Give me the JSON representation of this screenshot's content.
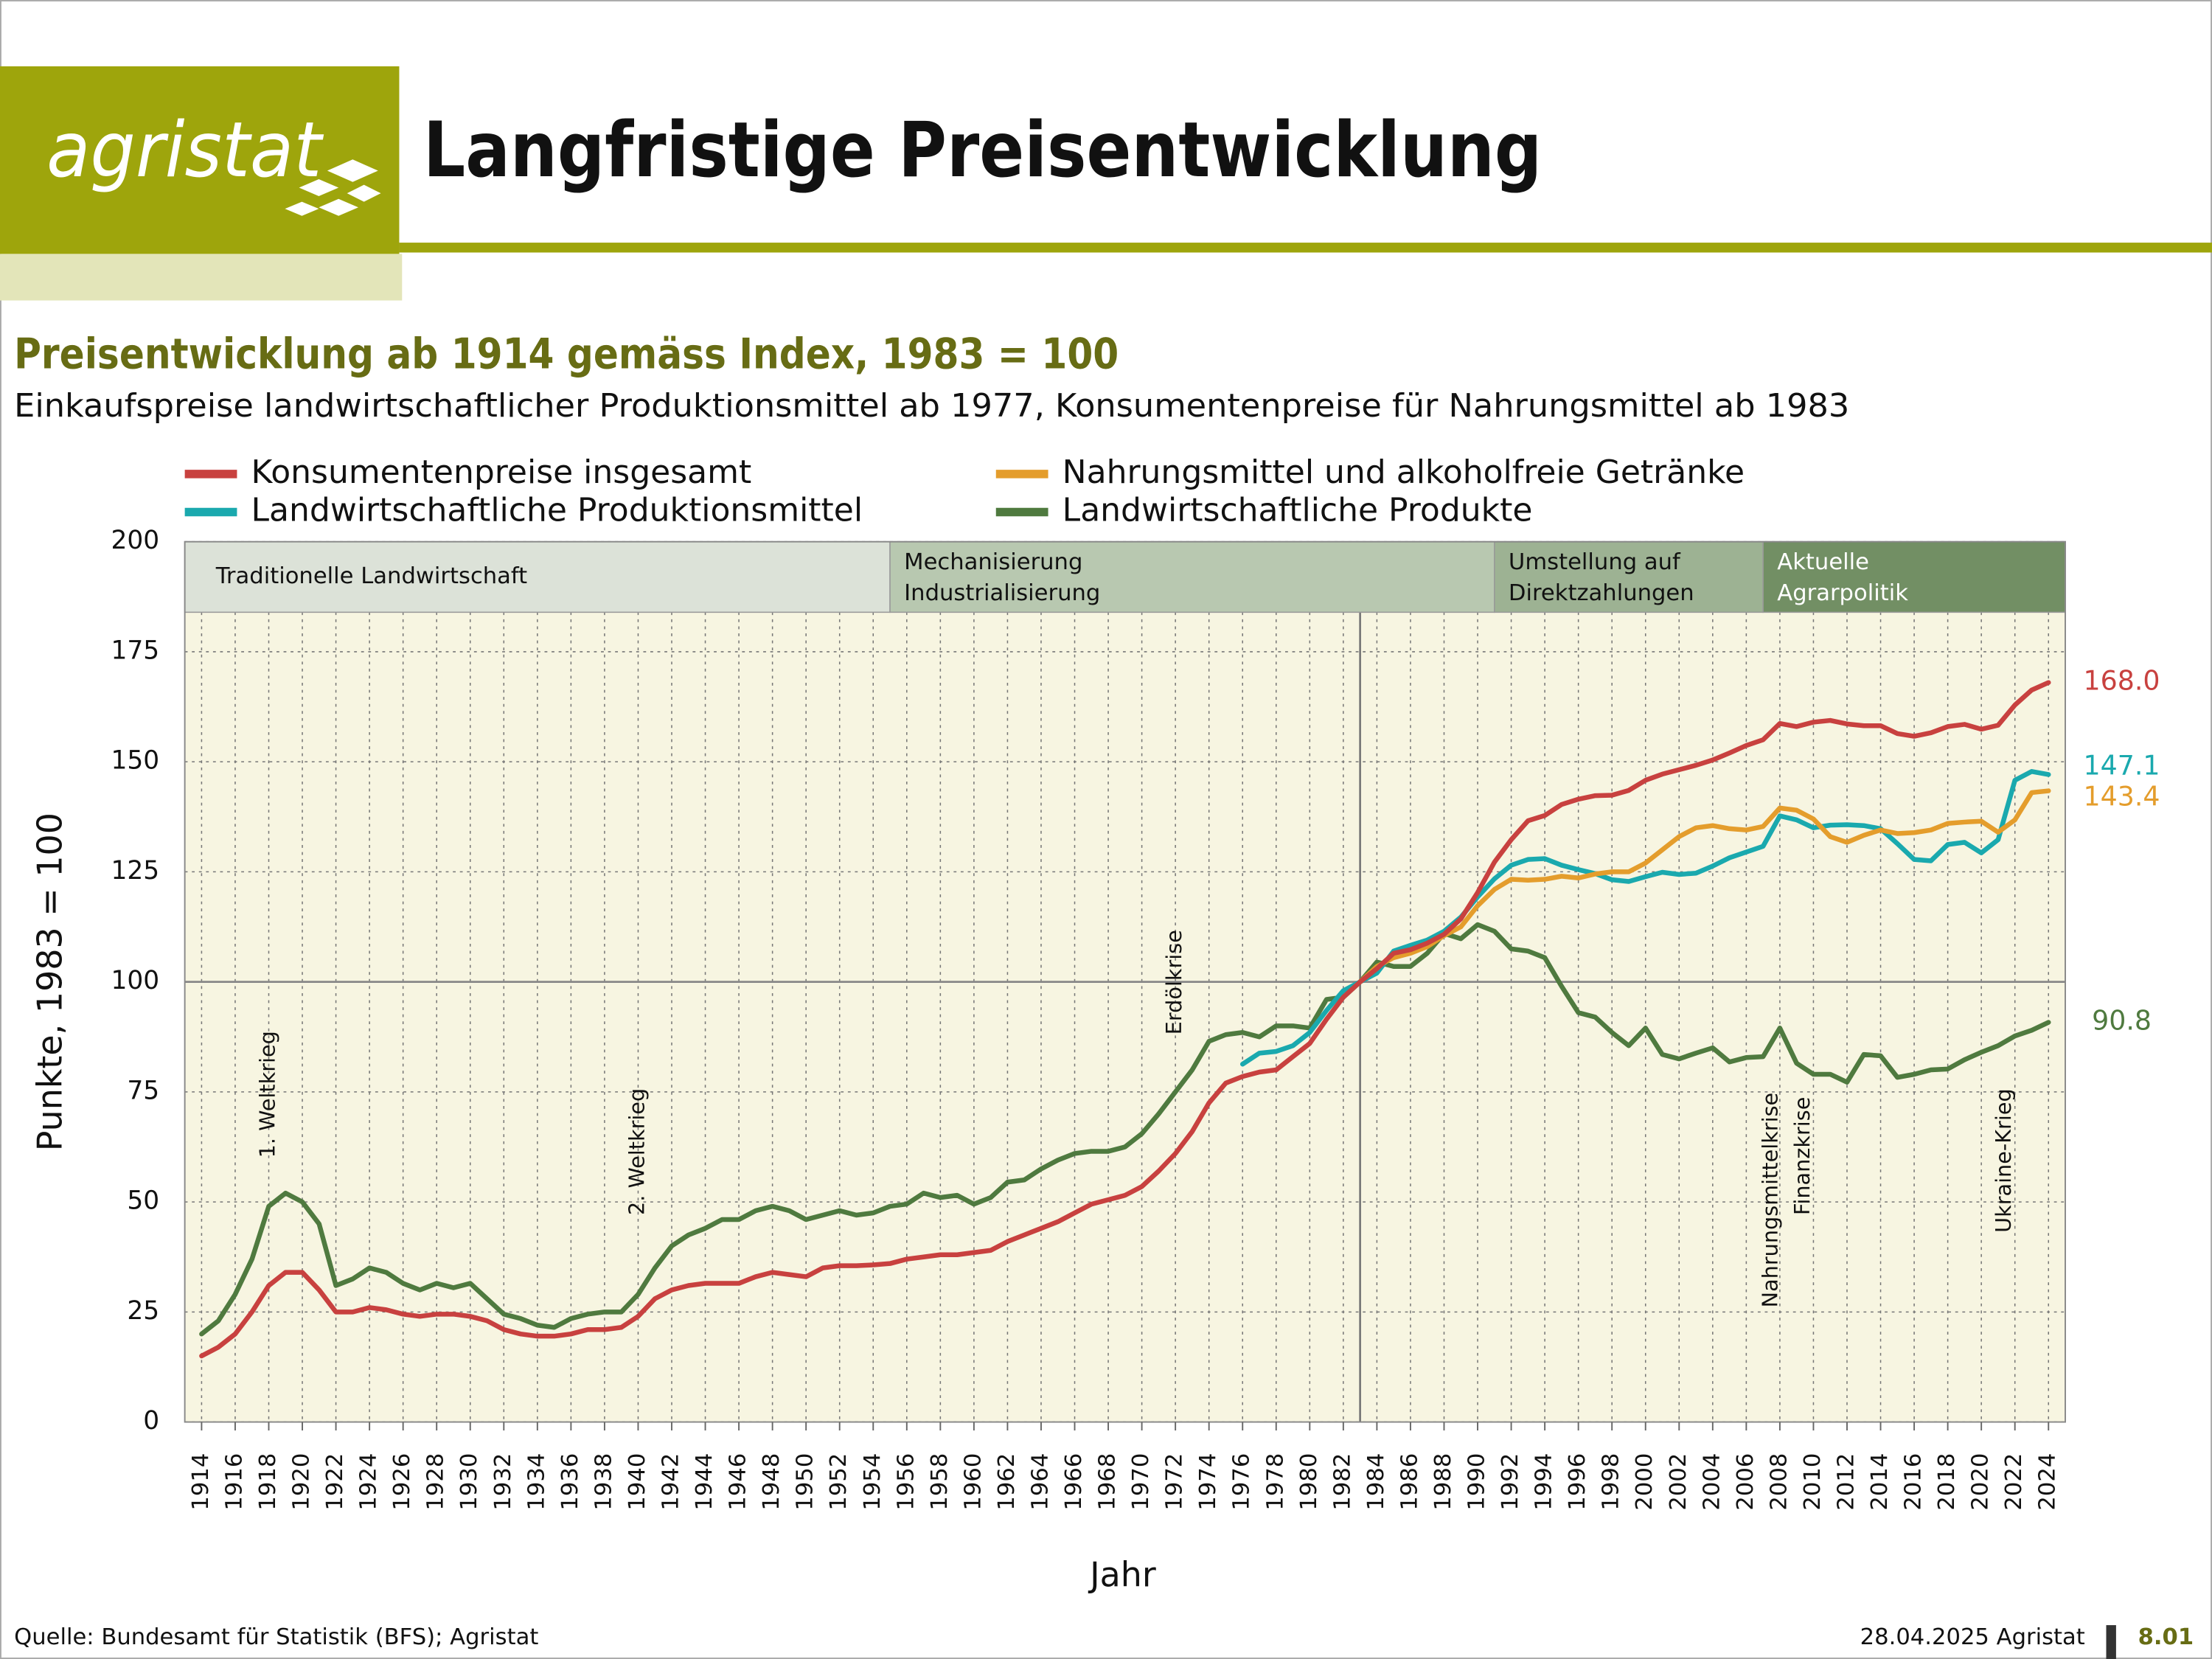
{
  "header": {
    "logo": "agristat",
    "title": "Langfristige Preisentwicklung"
  },
  "chart_data": {
    "type": "line",
    "title": "Preisentwicklung ab 1914 gemäss Index, 1983 = 100",
    "subtitle": "Einkaufspreise landwirtschaftlicher Produktionsmittel ab 1977, Konsumentenpreise für Nahrungsmittel ab 1983",
    "x_label": "Jahr",
    "y_label": "Punkte, 1983 = 100",
    "x": [
      1914,
      1915,
      1916,
      1917,
      1918,
      1919,
      1920,
      1921,
      1922,
      1923,
      1924,
      1925,
      1926,
      1927,
      1928,
      1929,
      1930,
      1931,
      1932,
      1933,
      1934,
      1935,
      1936,
      1937,
      1938,
      1939,
      1940,
      1941,
      1942,
      1943,
      1944,
      1945,
      1946,
      1947,
      1948,
      1949,
      1950,
      1951,
      1952,
      1953,
      1954,
      1955,
      1956,
      1957,
      1958,
      1959,
      1960,
      1961,
      1962,
      1963,
      1964,
      1965,
      1966,
      1967,
      1968,
      1969,
      1970,
      1971,
      1972,
      1973,
      1974,
      1975,
      1976,
      1977,
      1978,
      1979,
      1980,
      1981,
      1982,
      1983,
      1984,
      1985,
      1986,
      1987,
      1988,
      1989,
      1990,
      1991,
      1992,
      1993,
      1994,
      1995,
      1996,
      1997,
      1998,
      1999,
      2000,
      2001,
      2002,
      2003,
      2004,
      2005,
      2006,
      2007,
      2008,
      2009,
      2010,
      2011,
      2012,
      2013,
      2014,
      2015,
      2016,
      2017,
      2018,
      2019,
      2020,
      2021,
      2022,
      2023,
      2024
    ],
    "xlim": [
      1913,
      2025
    ],
    "xticks": [
      1914,
      1916,
      1918,
      1920,
      1922,
      1924,
      1926,
      1928,
      1930,
      1932,
      1934,
      1936,
      1938,
      1940,
      1942,
      1944,
      1946,
      1948,
      1950,
      1952,
      1954,
      1956,
      1958,
      1960,
      1962,
      1964,
      1966,
      1968,
      1970,
      1972,
      1974,
      1976,
      1978,
      1980,
      1982,
      1984,
      1986,
      1988,
      1990,
      1992,
      1994,
      1996,
      1998,
      2000,
      2002,
      2004,
      2006,
      2008,
      2010,
      2012,
      2014,
      2016,
      2018,
      2020,
      2022,
      2024
    ],
    "ylim": [
      0,
      200
    ],
    "yticks": [
      0,
      25,
      50,
      75,
      100,
      125,
      150,
      175,
      200
    ],
    "grid": true,
    "reference_x": 1983,
    "reference_y": 100,
    "phases": [
      {
        "label": [
          "Traditionelle Landwirtschaft"
        ],
        "color": "#dce2d8"
      },
      {
        "label": [
          "Mechanisierung",
          "Industrialisierung"
        ],
        "color": "#b8c8b0"
      },
      {
        "label": [
          "Umstellung auf",
          "Direktzahlungen"
        ],
        "color": "#9db293"
      },
      {
        "label": [
          "Aktuelle",
          "Agrarpolitik"
        ],
        "color": "#728f64"
      }
    ],
    "phase_boundaries": [
      1955,
      1991,
      2007
    ],
    "annotations": [
      {
        "text": "1. Weltkrieg",
        "x": 1918,
        "y": 60
      },
      {
        "text": "2. Weltkrieg",
        "x": 1940,
        "y": 47
      },
      {
        "text": "Erdölkrise",
        "x": 1972,
        "y": 88
      },
      {
        "text": "Nahrungsmittelkrise",
        "x": 2007.5,
        "y": 26
      },
      {
        "text": "Finanzkrise",
        "x": 2009.4,
        "y": 47
      },
      {
        "text": "Ukraine-Krieg",
        "x": 2021.4,
        "y": 43
      }
    ],
    "series": [
      {
        "name": "Konsumentenpreise insgesamt",
        "color": "#c8413f",
        "values": [
          15,
          17,
          20,
          25,
          31,
          34,
          34,
          30,
          25,
          25,
          26,
          25.5,
          24.5,
          24,
          24.5,
          24.5,
          24,
          23,
          21,
          20,
          19.5,
          19.5,
          20,
          21,
          21,
          21.5,
          24,
          28,
          30,
          31,
          31.5,
          31.5,
          31.5,
          33,
          34,
          33.5,
          33,
          35,
          35.5,
          35.5,
          35.7,
          36,
          37,
          37.5,
          38,
          38,
          38.5,
          39,
          41,
          42.5,
          44,
          45.5,
          47.5,
          49.5,
          50.5,
          51.5,
          53.5,
          57,
          61,
          66,
          72.5,
          77,
          78.5,
          79.5,
          80,
          83,
          86,
          91.5,
          96.5,
          100,
          103,
          106.5,
          107.3,
          108.8,
          110.8,
          114.3,
          120.3,
          127.2,
          132.3,
          136.6,
          137.8,
          140.3,
          141.5,
          142.3,
          142.4,
          143.5,
          145.8,
          147.2,
          148.2,
          149.2,
          150.4,
          152,
          153.7,
          155,
          158.7,
          158,
          159,
          159.4,
          158.6,
          158.2,
          158.2,
          156.4,
          155.8,
          156.6,
          158,
          158.5,
          157.4,
          158.3,
          162.9,
          166.3,
          168
        ],
        "value_labels": [
          null,
          null,
          null,
          null,
          null,
          null,
          null,
          null,
          null,
          null,
          null,
          null,
          null,
          null,
          null,
          null,
          null,
          null,
          null,
          null,
          null,
          null,
          null,
          null,
          null,
          null,
          null,
          null,
          null,
          null,
          null,
          null,
          null,
          null,
          null,
          null,
          null,
          null,
          null,
          null,
          null,
          null,
          null,
          null,
          null,
          null,
          null,
          null,
          null,
          null,
          null,
          null,
          null,
          null,
          null,
          null,
          null,
          null,
          null,
          null,
          null,
          null,
          null,
          null,
          null,
          null,
          null,
          null,
          null,
          null,
          null,
          null,
          null,
          null,
          null,
          null,
          null,
          null,
          null,
          null,
          null,
          null,
          null,
          null,
          null,
          null,
          null,
          null,
          null,
          null,
          null,
          null,
          null,
          null,
          null,
          null,
          null,
          null,
          null,
          null,
          null,
          null,
          null,
          null,
          null,
          null,
          null,
          null,
          null,
          null,
          "168.0"
        ]
      },
      {
        "name": "Nahrungsmittel und alkoholfreie Getränke",
        "color": "#e49d2c",
        "values": [
          null,
          null,
          null,
          null,
          null,
          null,
          null,
          null,
          null,
          null,
          null,
          null,
          null,
          null,
          null,
          null,
          null,
          null,
          null,
          null,
          null,
          null,
          null,
          null,
          null,
          null,
          null,
          null,
          null,
          null,
          null,
          null,
          null,
          null,
          null,
          null,
          null,
          null,
          null,
          null,
          null,
          null,
          null,
          null,
          null,
          null,
          null,
          null,
          null,
          null,
          null,
          null,
          null,
          null,
          null,
          null,
          null,
          null,
          null,
          null,
          null,
          null,
          null,
          null,
          null,
          null,
          null,
          null,
          null,
          100,
          103.5,
          105.5,
          106.5,
          108,
          110.5,
          112.5,
          117.3,
          121,
          123.3,
          123.1,
          123.3,
          124,
          123.6,
          124.5,
          125,
          125,
          127,
          130,
          133,
          135,
          135.5,
          134.8,
          134.5,
          135.3,
          139.5,
          139,
          137,
          133,
          131.7,
          133.3,
          134.5,
          133.7,
          133.9,
          134.5,
          136,
          136.3,
          136.5,
          134,
          136.8,
          143,
          143.4
        ]
      },
      {
        "name": "Landwirtschaftliche Produktionsmittel",
        "color": "#1aa9ae",
        "values": [
          null,
          null,
          null,
          null,
          null,
          null,
          null,
          null,
          null,
          null,
          null,
          null,
          null,
          null,
          null,
          null,
          null,
          null,
          null,
          null,
          null,
          null,
          null,
          null,
          null,
          null,
          null,
          null,
          null,
          null,
          null,
          null,
          null,
          null,
          null,
          null,
          null,
          null,
          null,
          null,
          null,
          null,
          null,
          null,
          null,
          null,
          null,
          null,
          null,
          null,
          null,
          null,
          null,
          null,
          null,
          null,
          null,
          null,
          null,
          null,
          null,
          null,
          81.3,
          83.8,
          84.2,
          85.5,
          88.5,
          93.5,
          98,
          100,
          102,
          107,
          108.3,
          109.5,
          111.5,
          114.7,
          119.3,
          123.4,
          126.5,
          127.8,
          128,
          126.5,
          125.5,
          124.6,
          123.2,
          122.8,
          123.9,
          124.9,
          124.4,
          124.7,
          126.3,
          128.2,
          129.5,
          130.8,
          137.7,
          136.8,
          135,
          135.6,
          135.7,
          135.5,
          134.8,
          131.4,
          127.8,
          127.5,
          131.2,
          131.7,
          129.3,
          132.3,
          145.8,
          147.8,
          147.1
        ]
      },
      {
        "name": "Landwirtschaftliche Produkte",
        "color": "#4f7a3f",
        "values": [
          20,
          23,
          29,
          37,
          49,
          52,
          50,
          45,
          31,
          32.5,
          35,
          34,
          31.5,
          30,
          31.5,
          30.5,
          31.5,
          28,
          24.5,
          23.5,
          22,
          21.5,
          23.5,
          24.5,
          25,
          25,
          29,
          35,
          40,
          42.5,
          44,
          46,
          46,
          48,
          49,
          48,
          46,
          47,
          48,
          47,
          47.5,
          49,
          49.5,
          52,
          51,
          51.5,
          49.5,
          51,
          54.5,
          55,
          57.5,
          59.5,
          61,
          61.5,
          61.5,
          62.5,
          65.5,
          70,
          75,
          80,
          86.5,
          88,
          88.5,
          87.5,
          90,
          90,
          89.5,
          96,
          96.5,
          100,
          104.5,
          103.5,
          103.5,
          106.5,
          111,
          109.8,
          113,
          111.5,
          107.5,
          107,
          105.5,
          99,
          93,
          92,
          88.5,
          85.5,
          89.5,
          83.5,
          82.5,
          83.8,
          85,
          81.8,
          82.8,
          83,
          89.5,
          81.5,
          79,
          79,
          77.2,
          83.5,
          83.2,
          78.3,
          79,
          80,
          80.2,
          82.3,
          84,
          85.5,
          87.7,
          89,
          90.8
        ]
      }
    ]
  },
  "footer": {
    "source": "Quelle: Bundesamt für Statistik (BFS); Agristat",
    "date": "28.04.2025 Agristat",
    "page": "8.01"
  }
}
